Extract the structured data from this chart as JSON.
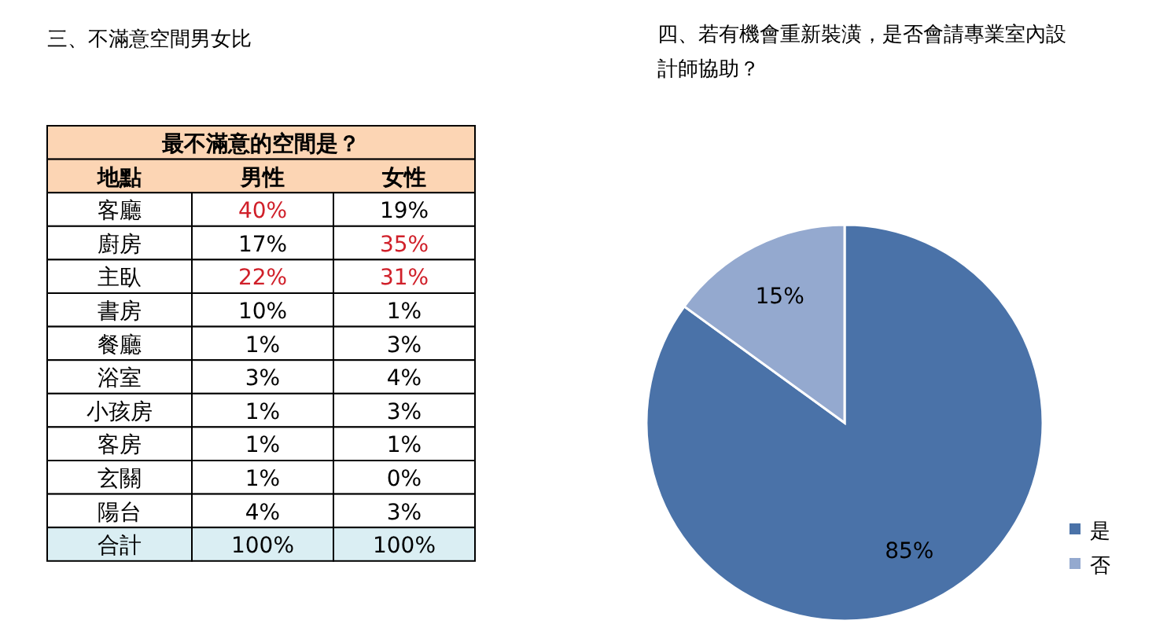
{
  "chart_data": [
    {
      "type": "heatmap",
      "title": "三、不滿意空間男女比",
      "subtitle": "最不滿意的空間是？",
      "ylabel": "地點",
      "categories": [
        "男性",
        "女性"
      ],
      "y_categories": [
        "客廳",
        "廚房",
        "主臥",
        "書房",
        "餐廳",
        "浴室",
        "小孩房",
        "客房",
        "玄關",
        "陽台",
        "合計"
      ],
      "cells": [
        [
          40,
          19
        ],
        [
          17,
          35
        ],
        [
          22,
          31
        ],
        [
          10,
          1
        ],
        [
          1,
          3
        ],
        [
          3,
          4
        ],
        [
          1,
          3
        ],
        [
          1,
          1
        ],
        [
          1,
          0
        ],
        [
          4,
          3
        ],
        [
          100,
          100
        ]
      ],
      "cell_labels": [
        [
          "40%",
          "19%"
        ],
        [
          "17%",
          "35%"
        ],
        [
          "22%",
          "31%"
        ],
        [
          "10%",
          "1%"
        ],
        [
          "1%",
          "3%"
        ],
        [
          "3%",
          "4%"
        ],
        [
          "1%",
          "3%"
        ],
        [
          "1%",
          "1%"
        ],
        [
          "1%",
          "0%"
        ],
        [
          "4%",
          "3%"
        ],
        [
          "100%",
          "100%"
        ]
      ]
    },
    {
      "type": "pie",
      "title": "四、若有機會重新裝潢，是否會請專業室內設計師協助？",
      "categories": [
        "是",
        "否"
      ],
      "values": [
        85,
        15
      ],
      "value_labels": [
        "85%",
        "15%"
      ],
      "colors": [
        "#4a72a8",
        "#94a9cf"
      ],
      "legend": "right"
    }
  ]
}
